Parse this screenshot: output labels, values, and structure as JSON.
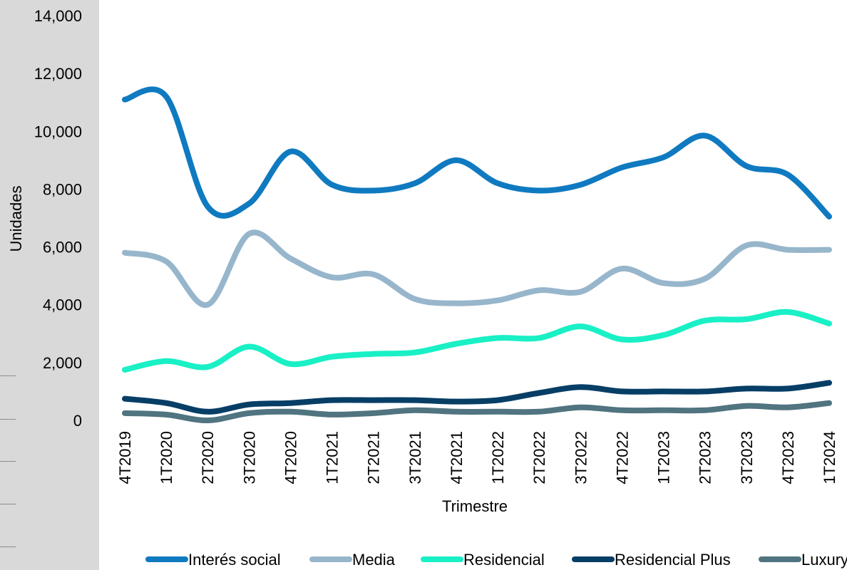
{
  "chart_data": {
    "type": "line",
    "title": "",
    "xlabel": "Trimestre",
    "ylabel": "Unidades",
    "ylim": [
      0,
      14000
    ],
    "yticks": [
      0,
      2000,
      4000,
      6000,
      8000,
      10000,
      12000,
      14000
    ],
    "ytick_labels": [
      "0",
      "2,000",
      "4,000",
      "6,000",
      "8,000",
      "10,000",
      "12,000",
      "14,000"
    ],
    "grid": false,
    "legend_position": "bottom",
    "smooth": true,
    "categories": [
      "4T2019",
      "1T2020",
      "2T2020",
      "3T2020",
      "4T2020",
      "1T2021",
      "2T2021",
      "3T2021",
      "4T2021",
      "1T2022",
      "2T2022",
      "3T2022",
      "4T2022",
      "1T2023",
      "2T2023",
      "3T2023",
      "4T2023",
      "1T2024"
    ],
    "series": [
      {
        "name": "Interés social",
        "color": "#0f7ac0",
        "values": [
          11100,
          11200,
          7400,
          7500,
          9300,
          8150,
          7950,
          8200,
          9000,
          8200,
          7950,
          8150,
          8750,
          9100,
          9850,
          8800,
          8500,
          7050
        ]
      },
      {
        "name": "Media",
        "color": "#97b6cb",
        "values": [
          5800,
          5500,
          4000,
          6450,
          5600,
          4950,
          5050,
          4200,
          4050,
          4150,
          4500,
          4450,
          5250,
          4750,
          4900,
          6050,
          5900,
          5900
        ]
      },
      {
        "name": "Residencial",
        "color": "#19f0c5",
        "values": [
          1750,
          2050,
          1850,
          2550,
          1950,
          2200,
          2300,
          2350,
          2650,
          2850,
          2850,
          3250,
          2800,
          2950,
          3450,
          3500,
          3750,
          3350
        ]
      },
      {
        "name": "Residencial Plus",
        "color": "#073e66",
        "values": [
          750,
          600,
          300,
          550,
          600,
          700,
          700,
          700,
          650,
          700,
          950,
          1150,
          1000,
          1000,
          1000,
          1100,
          1100,
          1300
        ]
      },
      {
        "name": "Luxury",
        "color": "#507480",
        "values": [
          250,
          200,
          0,
          250,
          300,
          200,
          250,
          350,
          300,
          300,
          300,
          450,
          350,
          350,
          350,
          500,
          450,
          600
        ]
      }
    ]
  }
}
